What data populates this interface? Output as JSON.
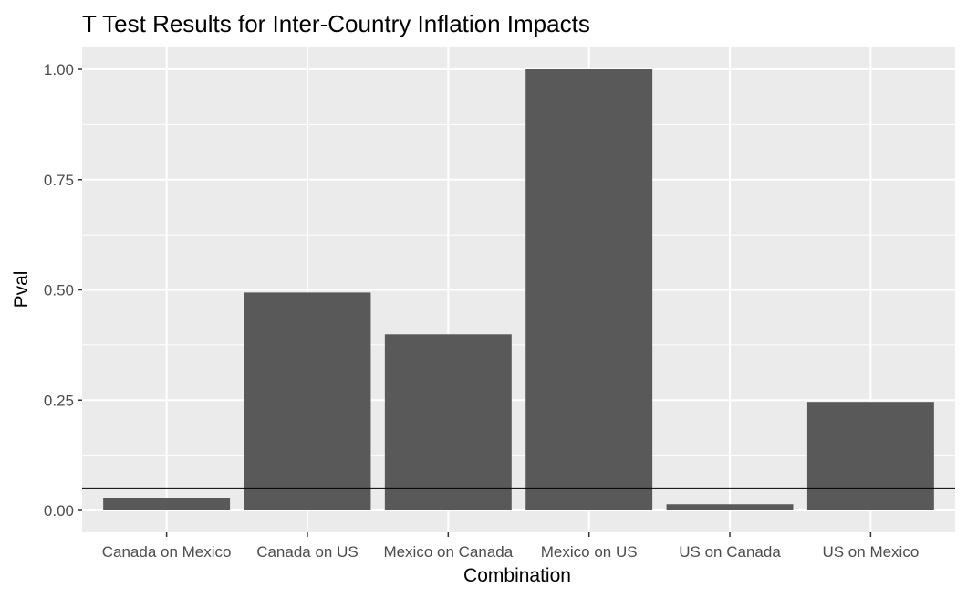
{
  "chart_data": {
    "type": "bar",
    "title": "T Test Results for Inter-Country Inflation Impacts",
    "xlabel": "Combination",
    "ylabel": "Pval",
    "categories": [
      "Canada on Mexico",
      "Canada on US",
      "Mexico on Canada",
      "Mexico on US",
      "US on Canada",
      "US on Mexico"
    ],
    "values": [
      0.027,
      0.494,
      0.399,
      1.0,
      0.014,
      0.246
    ],
    "reference_line": {
      "y": 0.05,
      "color": "#000000"
    },
    "ylim": [
      0,
      1.0
    ],
    "yticks": [
      0.0,
      0.25,
      0.5,
      0.75,
      1.0
    ],
    "ytick_labels": [
      "0.00",
      "0.25",
      "0.50",
      "0.75",
      "1.00"
    ],
    "grid": true,
    "legend": "none",
    "colors": {
      "bar": "#595959",
      "panel": "#ebebeb",
      "grid": "#ffffff",
      "ref_line": "#000000"
    }
  }
}
